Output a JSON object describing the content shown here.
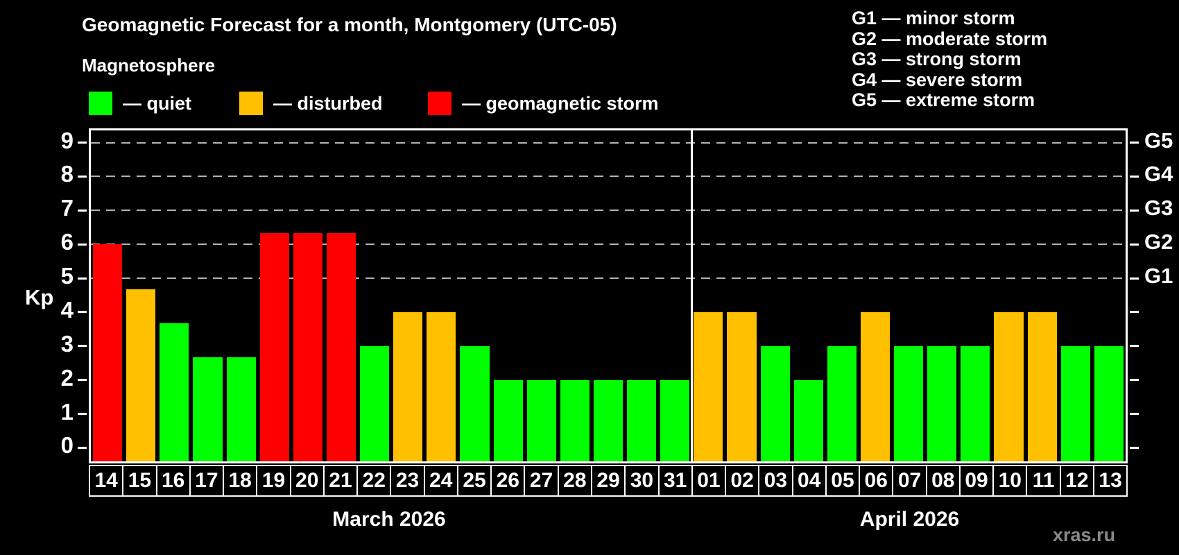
{
  "title": "Geomagnetic Forecast for a month, Montgomery (UTC-05)",
  "subtitle": "Magnetosphere",
  "watermark": "xras.ru",
  "colors": {
    "quiet": "#00ff00",
    "disturbed": "#ffc000",
    "storm": "#ff0000",
    "background": "#000000",
    "grid": "#b3b3b3",
    "axis": "#ffffff",
    "watermark_gray": "#8a8a8a"
  },
  "legend": [
    {
      "state": "quiet",
      "label": "— quiet"
    },
    {
      "state": "disturbed",
      "label": "— disturbed"
    },
    {
      "state": "storm",
      "label": "— geomagnetic storm"
    }
  ],
  "g_scale_legend": [
    "G1 — minor storm",
    "G2 — moderate storm",
    "G3 — strong storm",
    "G4 — severe storm",
    "G5 — extreme storm"
  ],
  "y_axis": {
    "label": "Kp",
    "ticks": [
      "9",
      "8",
      "7",
      "6",
      "5",
      "4",
      "3",
      "2",
      "1",
      "0"
    ],
    "tick_values": [
      9,
      8,
      7,
      6,
      5,
      4,
      3,
      2,
      1,
      0
    ]
  },
  "right_axis": {
    "labels": [
      {
        "text": "G5",
        "kp": 9
      },
      {
        "text": "G4",
        "kp": 8
      },
      {
        "text": "G3",
        "kp": 7
      },
      {
        "text": "G2",
        "kp": 6
      },
      {
        "text": "G1",
        "kp": 5
      }
    ]
  },
  "chart_data": {
    "type": "bar",
    "title": "Geomagnetic Forecast for a month, Montgomery (UTC-05)",
    "xlabel": "",
    "ylabel": "Kp",
    "ylim": [
      -0.4,
      9.36
    ],
    "grid": "dashed horizontal at Kp 5–9 (G1–G5 storm levels)",
    "grid_levels": [
      5,
      6,
      7,
      8,
      9
    ],
    "legend_position": "top",
    "groups": [
      {
        "label": "March 2026",
        "days": 18
      },
      {
        "label": "April 2026",
        "days": 13
      }
    ],
    "bars": [
      {
        "month": "March 2026",
        "day": "14",
        "kp": 6.0,
        "state": "storm"
      },
      {
        "month": "March 2026",
        "day": "15",
        "kp": 4.67,
        "state": "disturbed"
      },
      {
        "month": "March 2026",
        "day": "16",
        "kp": 3.67,
        "state": "quiet"
      },
      {
        "month": "March 2026",
        "day": "17",
        "kp": 2.67,
        "state": "quiet"
      },
      {
        "month": "March 2026",
        "day": "18",
        "kp": 2.67,
        "state": "quiet"
      },
      {
        "month": "March 2026",
        "day": "19",
        "kp": 6.33,
        "state": "storm"
      },
      {
        "month": "March 2026",
        "day": "20",
        "kp": 6.33,
        "state": "storm"
      },
      {
        "month": "March 2026",
        "day": "21",
        "kp": 6.33,
        "state": "storm"
      },
      {
        "month": "March 2026",
        "day": "22",
        "kp": 3.0,
        "state": "quiet"
      },
      {
        "month": "March 2026",
        "day": "23",
        "kp": 4.0,
        "state": "disturbed"
      },
      {
        "month": "March 2026",
        "day": "24",
        "kp": 4.0,
        "state": "disturbed"
      },
      {
        "month": "March 2026",
        "day": "25",
        "kp": 3.0,
        "state": "quiet"
      },
      {
        "month": "March 2026",
        "day": "26",
        "kp": 2.0,
        "state": "quiet"
      },
      {
        "month": "March 2026",
        "day": "27",
        "kp": 2.0,
        "state": "quiet"
      },
      {
        "month": "March 2026",
        "day": "28",
        "kp": 2.0,
        "state": "quiet"
      },
      {
        "month": "March 2026",
        "day": "29",
        "kp": 2.0,
        "state": "quiet"
      },
      {
        "month": "March 2026",
        "day": "30",
        "kp": 2.0,
        "state": "quiet"
      },
      {
        "month": "March 2026",
        "day": "31",
        "kp": 2.0,
        "state": "quiet"
      },
      {
        "month": "April 2026",
        "day": "01",
        "kp": 4.0,
        "state": "disturbed"
      },
      {
        "month": "April 2026",
        "day": "02",
        "kp": 4.0,
        "state": "disturbed"
      },
      {
        "month": "April 2026",
        "day": "03",
        "kp": 3.0,
        "state": "quiet"
      },
      {
        "month": "April 2026",
        "day": "04",
        "kp": 2.0,
        "state": "quiet"
      },
      {
        "month": "April 2026",
        "day": "05",
        "kp": 3.0,
        "state": "quiet"
      },
      {
        "month": "April 2026",
        "day": "06",
        "kp": 4.0,
        "state": "disturbed"
      },
      {
        "month": "April 2026",
        "day": "07",
        "kp": 3.0,
        "state": "quiet"
      },
      {
        "month": "April 2026",
        "day": "08",
        "kp": 3.0,
        "state": "quiet"
      },
      {
        "month": "April 2026",
        "day": "09",
        "kp": 3.0,
        "state": "quiet"
      },
      {
        "month": "April 2026",
        "day": "10",
        "kp": 4.0,
        "state": "disturbed"
      },
      {
        "month": "April 2026",
        "day": "11",
        "kp": 4.0,
        "state": "disturbed"
      },
      {
        "month": "April 2026",
        "day": "12",
        "kp": 3.0,
        "state": "quiet"
      },
      {
        "month": "April 2026",
        "day": "13",
        "kp": 3.0,
        "state": "quiet"
      }
    ]
  }
}
